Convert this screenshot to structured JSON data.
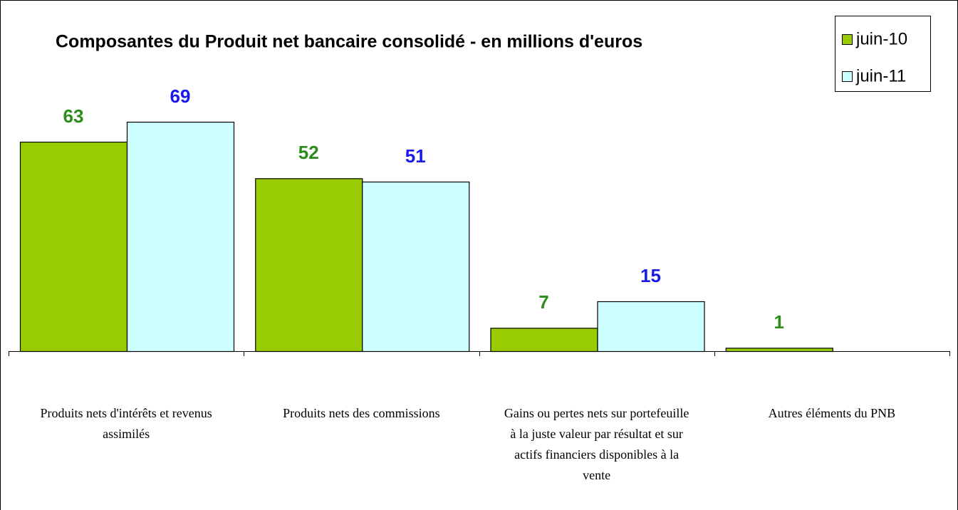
{
  "chart_data": {
    "type": "bar",
    "title": "Composantes du Produit net bancaire consolidé - en millions d'euros",
    "categories": [
      "Produits nets d'intérêts et revenus assimilés",
      "Produits nets des commissions",
      "Gains ou pertes nets sur portefeuille à la juste valeur par résultat et sur actifs financiers disponibles à la vente",
      "Autres éléments du PNB"
    ],
    "series": [
      {
        "name": "juin-10",
        "color": "#99cc00",
        "label_color": "#2e8b1e",
        "values": [
          63,
          52,
          7,
          1
        ]
      },
      {
        "name": "juin-11",
        "color": "#ccffff",
        "label_color": "#1a1aee",
        "values": [
          69,
          51,
          15,
          null
        ]
      }
    ],
    "legend": "top-right"
  }
}
